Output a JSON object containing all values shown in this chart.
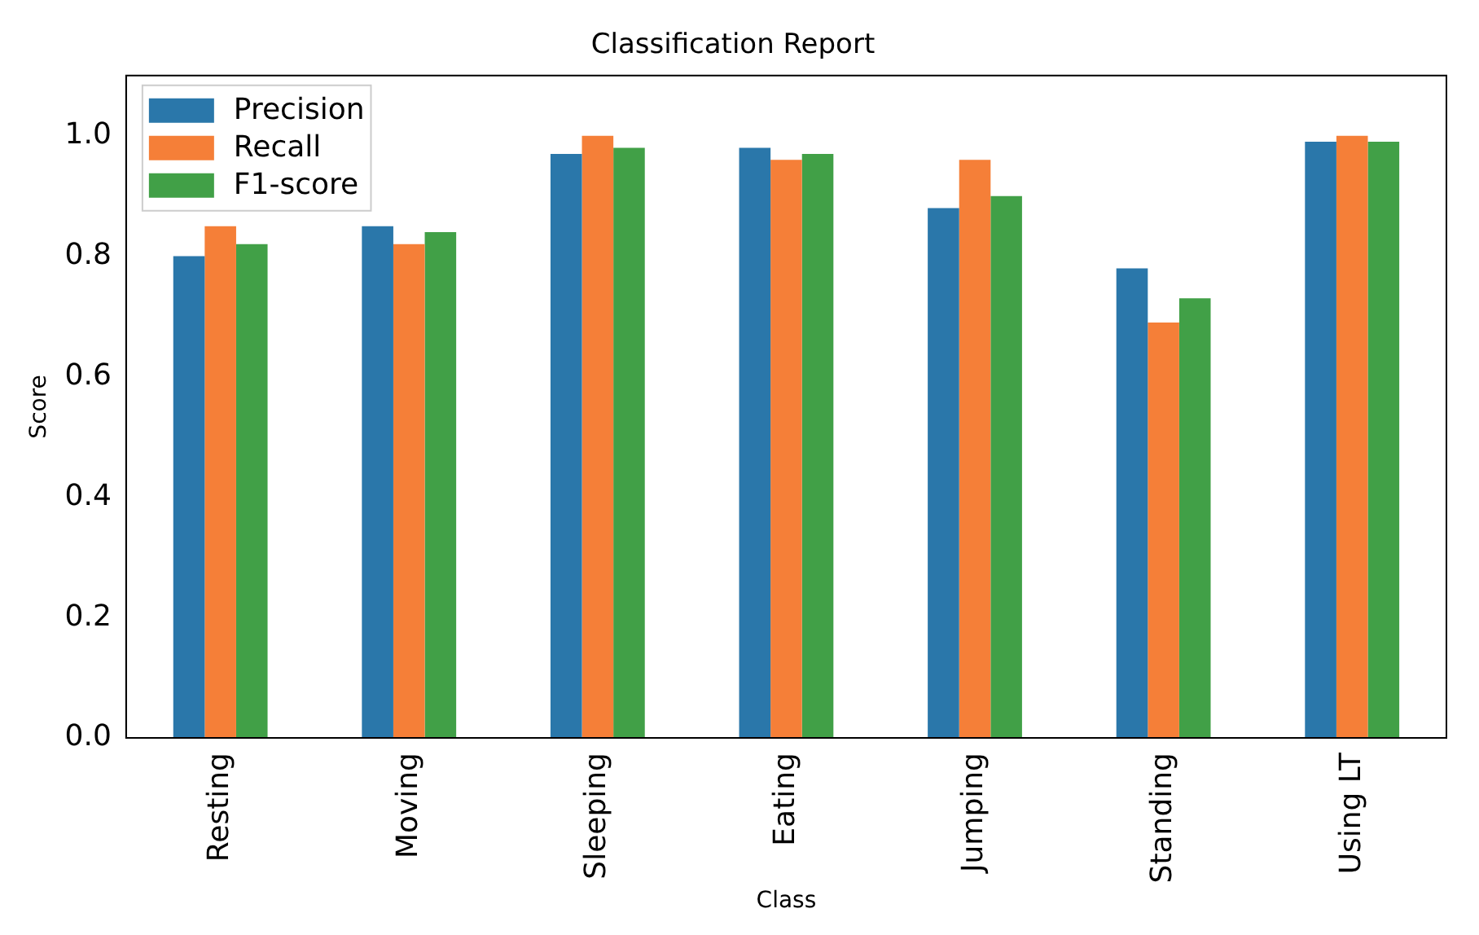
{
  "chart_data": {
    "type": "bar",
    "title": "Classification Report",
    "xlabel": "Class",
    "ylabel": "Score",
    "categories": [
      "Resting",
      "Moving",
      "Sleeping",
      "Eating",
      "Jumping",
      "Standing",
      "Using LT"
    ],
    "series": [
      {
        "name": "Precision",
        "color": "#2a77aa",
        "values": [
          0.8,
          0.85,
          0.97,
          0.98,
          0.88,
          0.78,
          0.99
        ]
      },
      {
        "name": "Recall",
        "color": "#f57f38",
        "values": [
          0.85,
          0.82,
          1.0,
          0.96,
          0.96,
          0.69,
          1.0
        ]
      },
      {
        "name": "F1-score",
        "color": "#41a047",
        "values": [
          0.82,
          0.84,
          0.98,
          0.97,
          0.9,
          0.73,
          0.99
        ]
      }
    ],
    "ylim": [
      0,
      1.1
    ],
    "yticks": [
      {
        "value": 0,
        "label": "0.0"
      },
      {
        "value": 0.2,
        "label": "0.2"
      },
      {
        "value": 0.4,
        "label": "0.4"
      },
      {
        "value": 0.6,
        "label": "0.6"
      },
      {
        "value": 0.8,
        "label": "0.8"
      },
      {
        "value": 1.0,
        "label": "1.0"
      }
    ],
    "legend": "top left"
  }
}
